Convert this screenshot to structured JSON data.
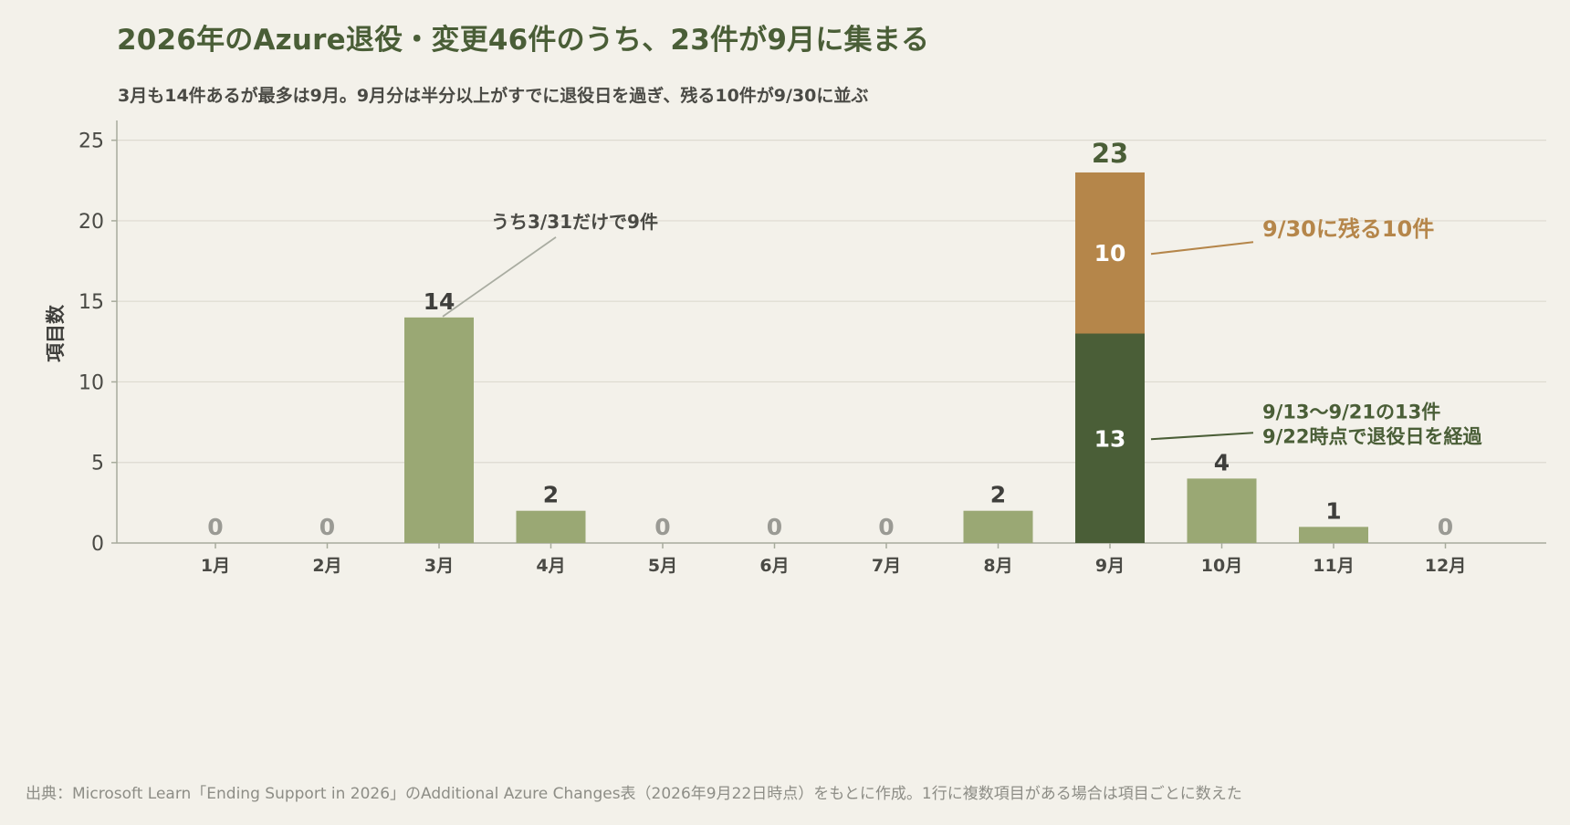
{
  "title": "2026年のAzure退役・変更46件のうち、23件が9月に集まる",
  "subtitle": "3月も14件あるが最多は9月。9月分は半分以上がすでに退役日を過ぎ、残る10件が9/30に並ぶ",
  "source": "出典：Microsoft Learn「Ending Support in 2026」のAdditional Azure Changes表（2026年9月22日時点）をもとに作成。1行に複数項目がある場合は項目ごとに数えた",
  "colors": {
    "bar": "#9aa874",
    "passed": "#4a5e37",
    "remaining": "#b5864a",
    "zero_label": "#9a9a94",
    "label": "#3f3f3c",
    "grid": "#dddad0",
    "axis": "#a7ab9c"
  },
  "chart_data": {
    "type": "bar",
    "categories": [
      "1月",
      "2月",
      "3月",
      "4月",
      "5月",
      "6月",
      "7月",
      "8月",
      "9月",
      "10月",
      "11月",
      "12月"
    ],
    "values": [
      0,
      0,
      14,
      2,
      0,
      0,
      0,
      2,
      23,
      4,
      1,
      0
    ],
    "ylabel": "項目数",
    "ylim": [
      0,
      26
    ],
    "yticks": [
      0,
      5,
      10,
      15,
      20,
      25
    ],
    "grid": true,
    "stacked_category": {
      "category": "9月",
      "segments": [
        {
          "value": 13,
          "color_key": "passed",
          "annotation": [
            "9/13〜9/21の13件",
            "9/22時点で退役日を経過"
          ]
        },
        {
          "value": 10,
          "color_key": "remaining",
          "annotation": [
            "9/30に残る10件"
          ]
        }
      ]
    },
    "annotations": [
      {
        "category": "3月",
        "text": "うち3/31だけで9件"
      }
    ]
  }
}
